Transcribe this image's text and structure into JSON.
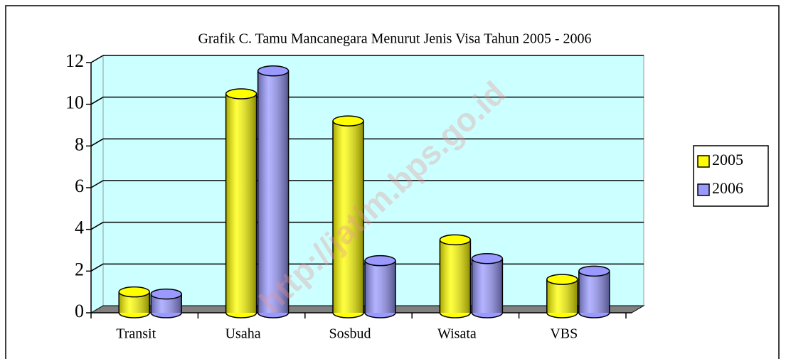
{
  "chart_data": {
    "type": "bar3d",
    "title": "Grafik C. Tamu Mancanegara Menurut Jenis Visa Tahun 2005 - 2006",
    "watermark": "http://jatim.bps.go.id",
    "categories": [
      "Transit",
      "Usaha",
      "Sosbud",
      "Wisata",
      "VBS"
    ],
    "series": [
      {
        "name": "2005",
        "color": "#ffff00",
        "values": [
          1.0,
          10.5,
          9.2,
          3.5,
          1.6
        ]
      },
      {
        "name": "2006",
        "color": "#9999ff",
        "values": [
          0.9,
          11.6,
          2.5,
          2.6,
          2.0
        ]
      }
    ],
    "ylim": [
      0,
      12
    ],
    "yticks": [
      0,
      2,
      4,
      6,
      8,
      10,
      12
    ],
    "grid": true,
    "legend": "right"
  }
}
